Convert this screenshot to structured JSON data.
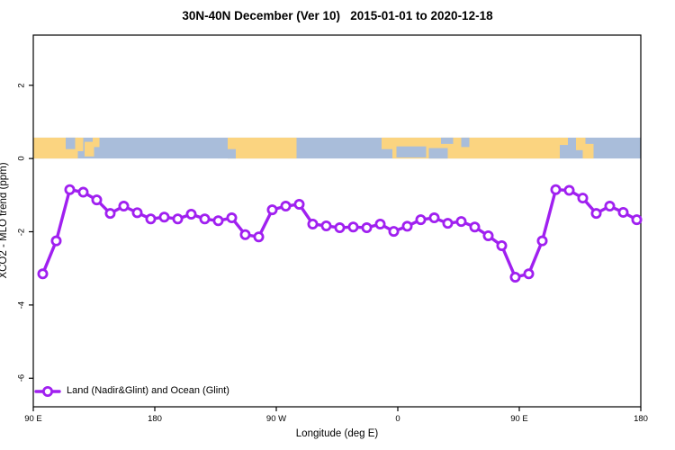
{
  "title": "30N-40N December (Ver 10)   2015-01-01 to 2020-12-18",
  "colors": {
    "series": "#A020F0",
    "land": "#FBD480",
    "ocean": "#A9BDDA",
    "axis": "#000000",
    "background": "#FFFFFF"
  },
  "legend": {
    "entries": [
      {
        "label": "Land (Nadir&Glint) and Ocean (Glint)",
        "color": "#A020F0",
        "marker": "circle-on-line"
      }
    ],
    "position": "bottom-left"
  },
  "chart_data": {
    "type": "line",
    "title": "30N-40N December (Ver 10)   2015-01-01 to 2020-12-18",
    "xlabel": "Longitude (deg E)",
    "ylabel": "XCO2 - MLO trend (ppm)",
    "grid": false,
    "x_axis_note": "longitude axis wraps eastward: 90E to 180, 90W, 0, 90E, 180 (continuous deg 90..540)",
    "xlim": [
      90,
      540
    ],
    "ylim": [
      -6.78,
      3.37
    ],
    "x_ticks": [
      {
        "deg": 90,
        "label": "90 E"
      },
      {
        "deg": 180,
        "label": "180"
      },
      {
        "deg": 270,
        "label": "90 W"
      },
      {
        "deg": 360,
        "label": "0"
      },
      {
        "deg": 450,
        "label": "90 E"
      },
      {
        "deg": 540,
        "label": "180"
      }
    ],
    "y_ticks": [
      {
        "value": 2,
        "label": "2"
      },
      {
        "value": 0,
        "label": "0"
      },
      {
        "value": -2,
        "label": "-2"
      },
      {
        "value": -4,
        "label": "-4"
      },
      {
        "value": -6,
        "label": "-6"
      }
    ],
    "series": [
      {
        "name": "Land (Nadir&Glint) and Ocean (Glint)",
        "color": "#A020F0",
        "marker": "open-circle",
        "x_deg_continuous": [
          97,
          107,
          117,
          127,
          137,
          147,
          157,
          167,
          177,
          187,
          197,
          207,
          217,
          227,
          237,
          247,
          257,
          267,
          277,
          287,
          297,
          307,
          317,
          327,
          337,
          347,
          357,
          367,
          377,
          387,
          397,
          407,
          417,
          427,
          437,
          447,
          457,
          467,
          477,
          487,
          497,
          507,
          517,
          527,
          537
        ],
        "values": [
          -3.15,
          -2.25,
          -0.85,
          -0.92,
          -1.13,
          -1.5,
          -1.3,
          -1.48,
          -1.65,
          -1.6,
          -1.65,
          -1.52,
          -1.65,
          -1.7,
          -1.62,
          -2.08,
          -2.14,
          -1.4,
          -1.3,
          -1.25,
          -1.79,
          -1.84,
          -1.89,
          -1.87,
          -1.89,
          -1.79,
          -1.99,
          -1.85,
          -1.67,
          -1.62,
          -1.77,
          -1.72,
          -1.87,
          -2.11,
          -2.38,
          -3.24,
          -3.15,
          -2.25,
          -0.85,
          -0.87,
          -1.08,
          -1.5,
          -1.3,
          -1.47,
          -1.67
        ]
      }
    ],
    "map_band": {
      "description": "30N-40N latitude strip world map drawn between y values 0 and 0.57 ppm",
      "value_bottom": 0,
      "value_top": 0.57,
      "base": "ocean",
      "ocean_color": "#A9BDDA",
      "land_color": "#FBD480",
      "land_patches": [
        [
          90,
          123,
          0,
          1
        ],
        [
          122,
          127,
          0,
          0.65
        ],
        [
          128,
          135,
          0.2,
          0.9
        ],
        [
          134,
          139,
          0,
          0.45
        ],
        [
          234,
          285,
          0,
          1
        ],
        [
          348,
          356,
          0,
          0.55
        ],
        [
          356,
          480,
          0,
          1
        ],
        [
          479,
          486,
          0,
          0.35
        ],
        [
          492,
          499,
          0,
          0.6
        ],
        [
          497,
          505,
          0.3,
          1
        ]
      ],
      "ocean_patches": [
        [
          114,
          121,
          0,
          0.55
        ],
        [
          234,
          240,
          0.55,
          1
        ],
        [
          359,
          381,
          0.42,
          0.95
        ],
        [
          383,
          397,
          0.5,
          1
        ],
        [
          392,
          401,
          0,
          0.3
        ],
        [
          407,
          413,
          0,
          0.45
        ]
      ]
    }
  }
}
